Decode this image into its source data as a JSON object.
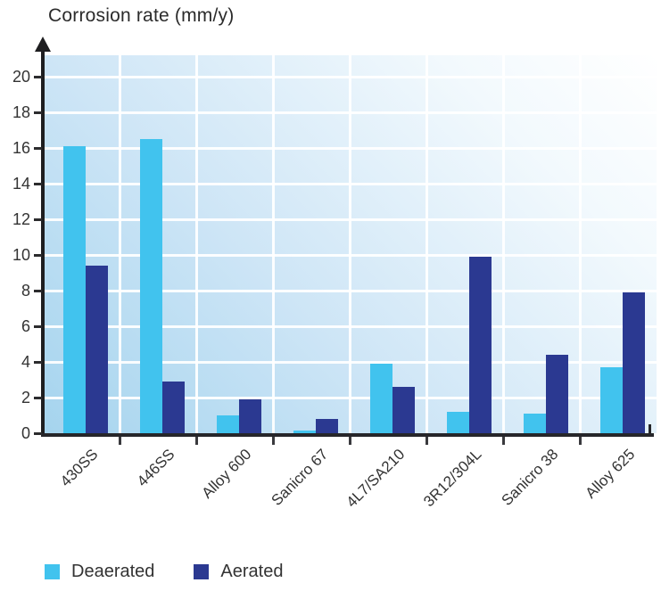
{
  "chart_data": {
    "type": "bar",
    "title": "Corrosion rate (mm/y)",
    "categories": [
      "430SS",
      "446SS",
      "Alloy 600",
      "Sanicro 67",
      "4L7/SA210",
      "3R12/304L",
      "Sanicro 38",
      "Alloy 625"
    ],
    "series": [
      {
        "name": "Deaerated",
        "color": "#41c3ee",
        "values": [
          16.1,
          16.5,
          1.0,
          0.15,
          3.9,
          1.2,
          1.1,
          3.7
        ]
      },
      {
        "name": "Aerated",
        "color": "#2b3991",
        "values": [
          9.4,
          2.9,
          1.9,
          0.8,
          2.6,
          9.9,
          4.4,
          7.9
        ]
      }
    ],
    "ylabel": "Corrosion rate (mm/y)",
    "xlabel": "",
    "ylim": [
      0,
      21
    ],
    "yticks": [
      0,
      2,
      4,
      6,
      8,
      10,
      12,
      14,
      16,
      18,
      20
    ],
    "grid": true,
    "legend_position": "bottom",
    "colors": {
      "deaerated_bar": "#41c3ee",
      "aerated_bar": "#2b3991",
      "plot_bg_light": "#ffffff",
      "plot_bg_dark": "#a5d4ee",
      "gridline": "#ffffff",
      "axis": "#1e1e20",
      "text": "#333333"
    }
  },
  "legend": {
    "items": [
      {
        "label": "Deaerated",
        "color": "#41c3ee"
      },
      {
        "label": "Aerated",
        "color": "#2b3991"
      }
    ]
  }
}
